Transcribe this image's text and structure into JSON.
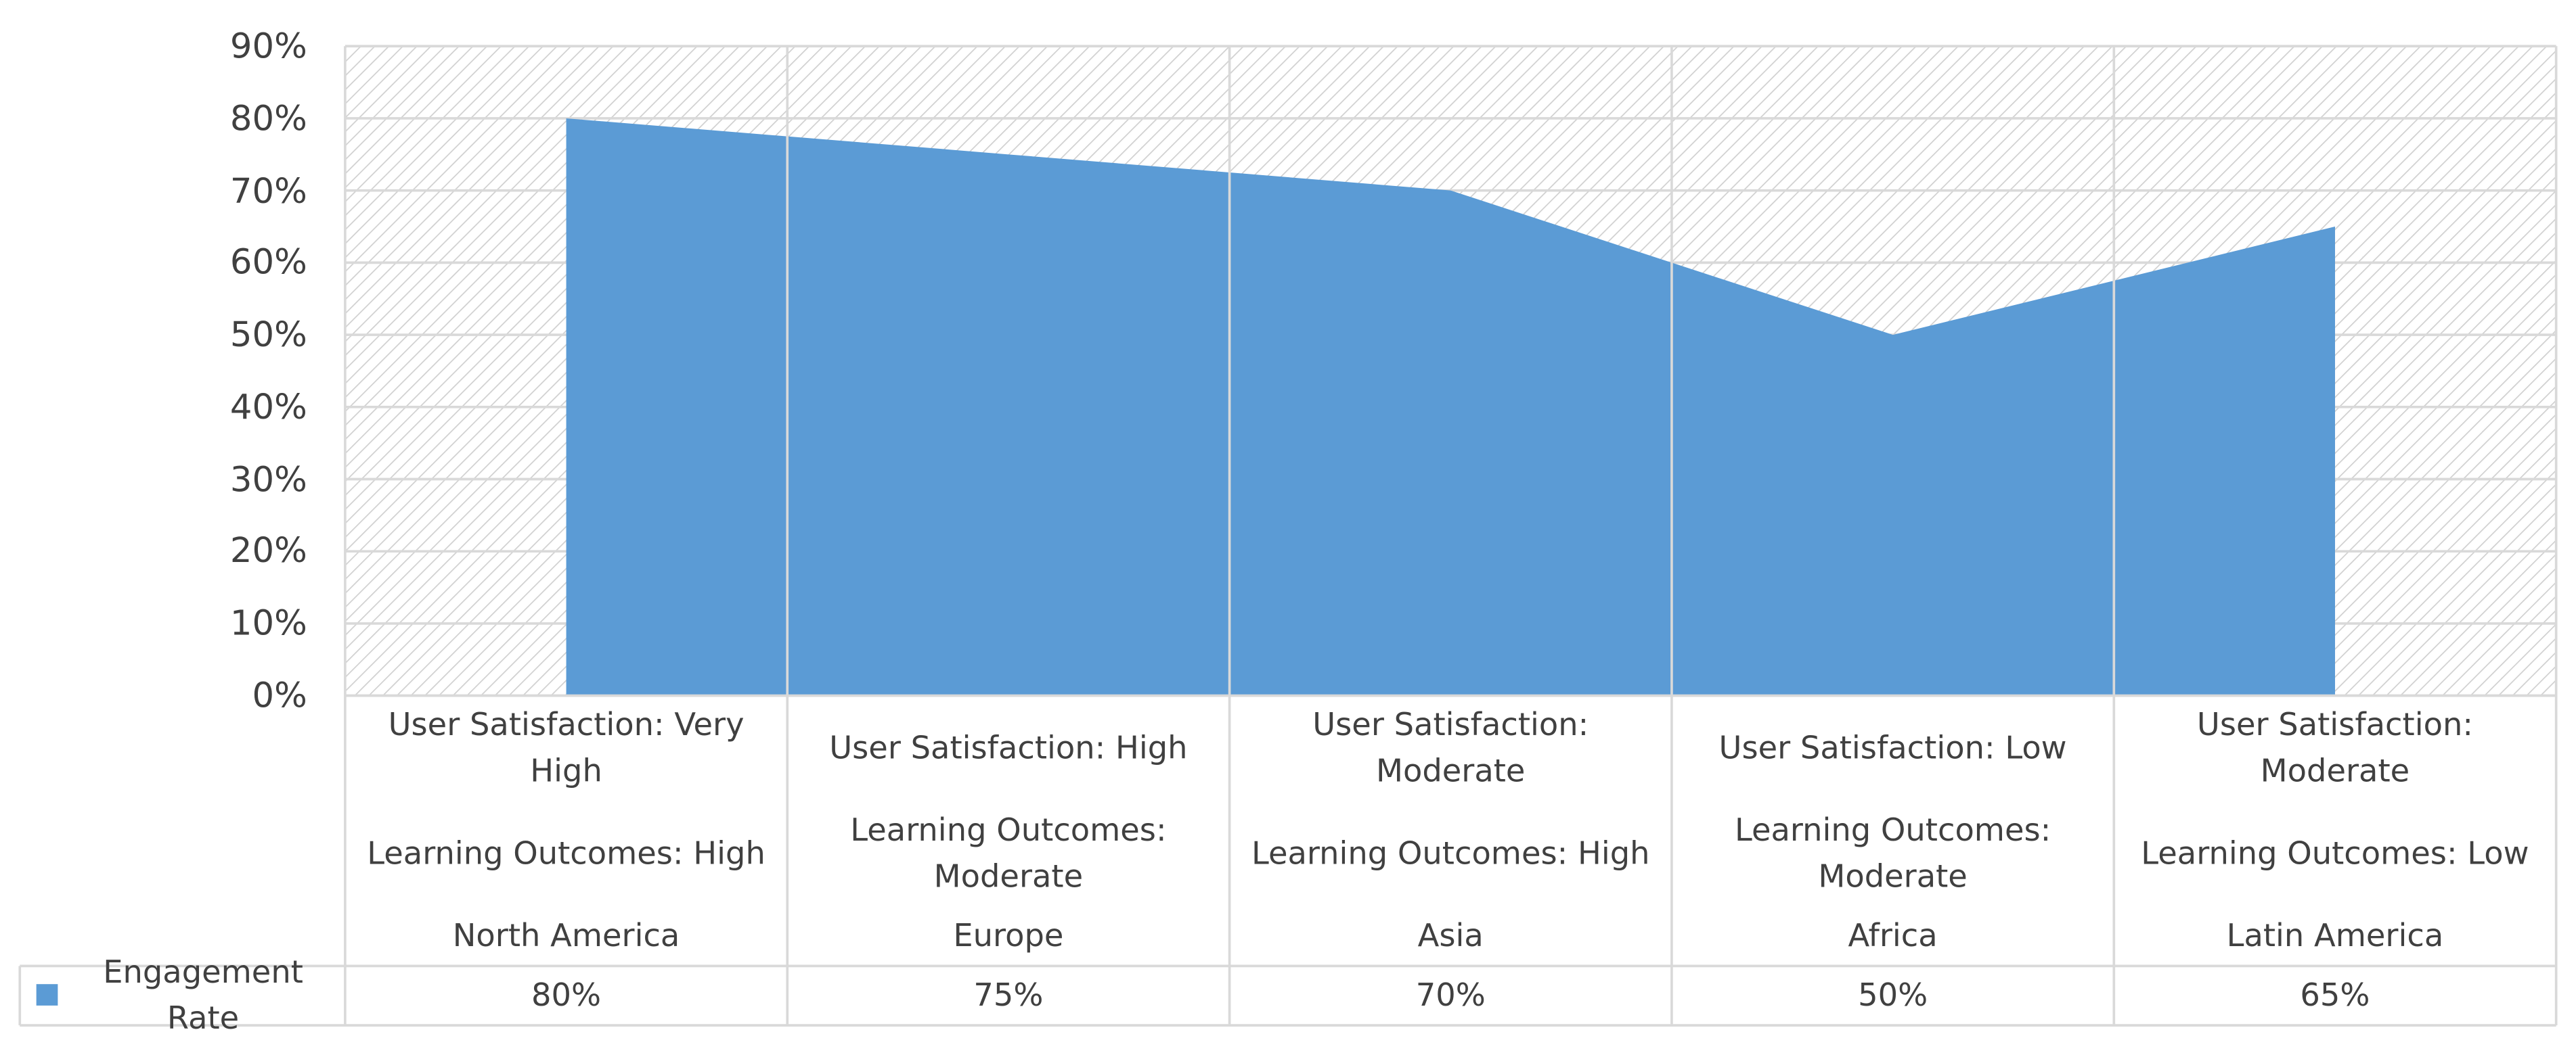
{
  "chart_data": {
    "type": "area",
    "categories": [
      "North America",
      "Europe",
      "Asia",
      "Africa",
      "Latin America"
    ],
    "learning_outcomes": [
      "Learning Outcomes: High",
      "Learning Outcomes: Moderate",
      "Learning Outcomes: High",
      "Learning Outcomes: Moderate",
      "Learning Outcomes: Low"
    ],
    "user_satisfaction": [
      "User Satisfaction: Very High",
      "User Satisfaction: High",
      "User Satisfaction: Moderate",
      "User Satisfaction: Low",
      "User Satisfaction: Moderate"
    ],
    "series": [
      {
        "name": "Engagement Rate",
        "color": "#5b9bd5",
        "values": [
          80,
          75,
          70,
          50,
          65
        ],
        "value_labels": [
          "80%",
          "75%",
          "70%",
          "50%",
          "65%"
        ]
      }
    ],
    "ylim": [
      0,
      90
    ],
    "yticks": [
      {
        "value": 0,
        "label": "0%"
      },
      {
        "value": 10,
        "label": "10%"
      },
      {
        "value": 20,
        "label": "20%"
      },
      {
        "value": 30,
        "label": "30%"
      },
      {
        "value": 40,
        "label": "40%"
      },
      {
        "value": 50,
        "label": "50%"
      },
      {
        "value": 60,
        "label": "60%"
      },
      {
        "value": 70,
        "label": "70%"
      },
      {
        "value": 80,
        "label": "80%"
      },
      {
        "value": 90,
        "label": "90%"
      }
    ],
    "grid": true
  }
}
